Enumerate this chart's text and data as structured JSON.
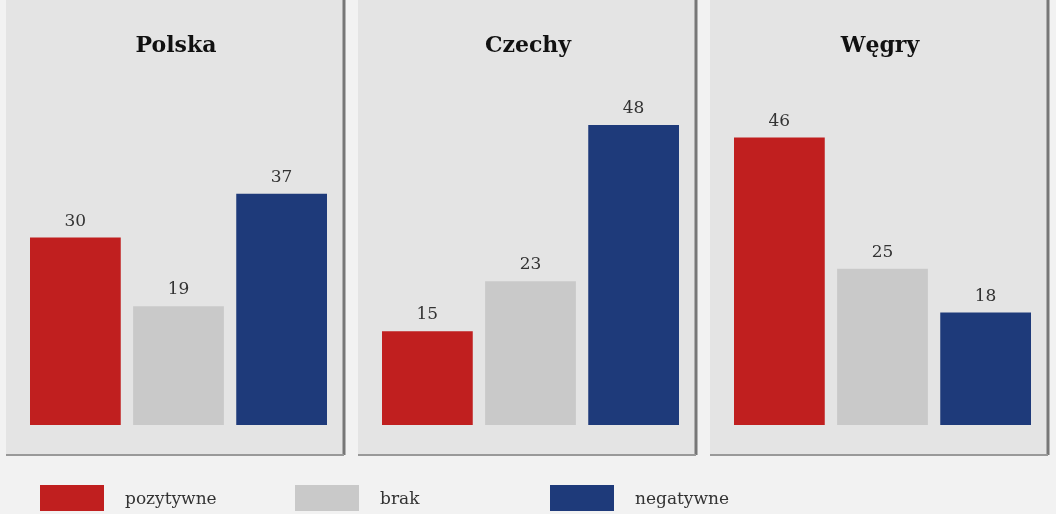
{
  "chart_data": [
    {
      "type": "bar",
      "title": "Polska",
      "categories": [
        null
      ],
      "data_labels": true,
      "legend": "bottom",
      "series": [
        {
          "name": "pozytywne",
          "color": "#c01f1f",
          "values": [
            30
          ]
        },
        {
          "name": "brak",
          "color": "#c9c9c9",
          "values": [
            19
          ]
        },
        {
          "name": "negatywne",
          "color": "#1e3a7a",
          "values": [
            37
          ]
        }
      ]
    },
    {
      "type": "bar",
      "title": "Czechy",
      "categories": [
        null
      ],
      "data_labels": true,
      "series": [
        {
          "color": "#c01f1f",
          "values": [
            15
          ]
        },
        {
          "color": "#c9c9c9",
          "values": [
            23
          ]
        },
        {
          "color": "#1e3a7a",
          "values": [
            48
          ]
        }
      ]
    },
    {
      "type": "bar",
      "title": "Węgry",
      "categories": [
        null
      ],
      "data_labels": true,
      "series": [
        {
          "color": "#c01f1f",
          "values": [
            46
          ]
        },
        {
          "color": "#c9c9c9",
          "values": [
            25
          ]
        },
        {
          "color": "#1e3a7a",
          "values": [
            18
          ]
        }
      ]
    }
  ]
}
